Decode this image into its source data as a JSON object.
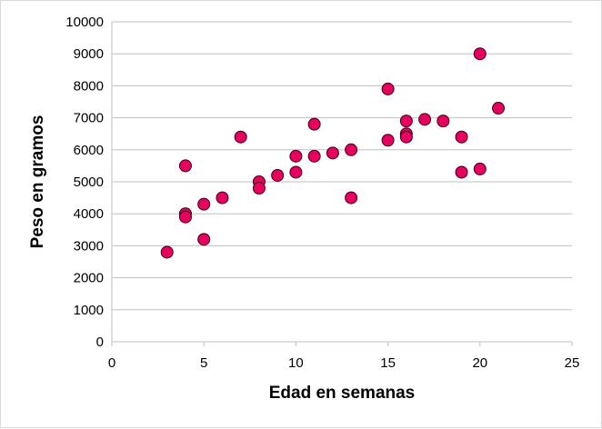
{
  "chart_data": {
    "type": "scatter",
    "title": "",
    "xlabel": "Edad en semanas",
    "ylabel": "Peso en gramos",
    "xlim": [
      0,
      25
    ],
    "ylim": [
      0,
      10000
    ],
    "x_ticks": [
      0,
      5,
      10,
      15,
      20,
      25
    ],
    "y_ticks": [
      0,
      1000,
      2000,
      3000,
      4000,
      5000,
      6000,
      7000,
      8000,
      9000,
      10000
    ],
    "grid": "horizontal",
    "legend": "none",
    "marker_color": "#e8005e",
    "marker_edge_color": "#3a0018",
    "points": [
      {
        "x": 3,
        "y": 2800
      },
      {
        "x": 4,
        "y": 5500
      },
      {
        "x": 4,
        "y": 4000
      },
      {
        "x": 4,
        "y": 3900
      },
      {
        "x": 5,
        "y": 4300
      },
      {
        "x": 5,
        "y": 3200
      },
      {
        "x": 6,
        "y": 4500
      },
      {
        "x": 7,
        "y": 6400
      },
      {
        "x": 8,
        "y": 5000
      },
      {
        "x": 8,
        "y": 4800
      },
      {
        "x": 9,
        "y": 5200
      },
      {
        "x": 10,
        "y": 5800
      },
      {
        "x": 10,
        "y": 5300
      },
      {
        "x": 11,
        "y": 6800
      },
      {
        "x": 11,
        "y": 5800
      },
      {
        "x": 12,
        "y": 5900
      },
      {
        "x": 13,
        "y": 6000
      },
      {
        "x": 13,
        "y": 4500
      },
      {
        "x": 15,
        "y": 7900
      },
      {
        "x": 15,
        "y": 6300
      },
      {
        "x": 16,
        "y": 6900
      },
      {
        "x": 16,
        "y": 6500
      },
      {
        "x": 16,
        "y": 6400
      },
      {
        "x": 17,
        "y": 6950
      },
      {
        "x": 18,
        "y": 6900
      },
      {
        "x": 19,
        "y": 6400
      },
      {
        "x": 19,
        "y": 5300
      },
      {
        "x": 20,
        "y": 9000
      },
      {
        "x": 20,
        "y": 5400
      },
      {
        "x": 21,
        "y": 7300
      }
    ]
  }
}
